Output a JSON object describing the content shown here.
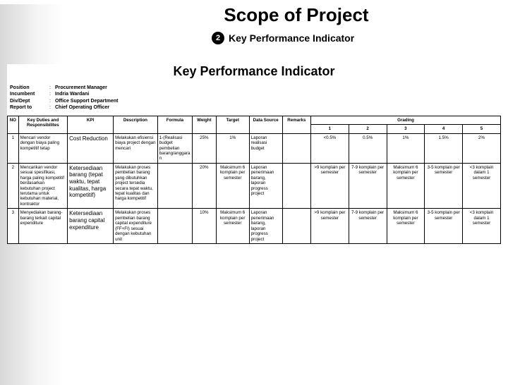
{
  "title": "Scope of Project",
  "subtitle_num": "2",
  "subtitle_text": "Key Performance Indicator",
  "kpi_heading": "Key Performance Indicator",
  "info": {
    "position_label": "Position",
    "position_val": "Procurement Manager",
    "incumbent_label": "Incumbent",
    "incumbent_val": "Indria Wardani",
    "div_label": "Div/Dept",
    "div_val": "Office Support Department",
    "report_label": "Report to",
    "report_val": "Chief Operating Officer"
  },
  "headers": {
    "no": "NO",
    "duties": "Key Duties and Responsibilites",
    "kpi": "KPI",
    "desc": "Description",
    "formula": "Formula",
    "weight": "Weight",
    "target": "Target",
    "data_source": "Data Source",
    "remarks": "Remarks",
    "grading": "Grading",
    "g1": "1",
    "g2": "2",
    "g3": "3",
    "g4": "4",
    "g5": "5"
  },
  "rows": [
    {
      "no": "1",
      "duties": "Mencari vendor dengan biaya paling kompetitif tetap",
      "kpi": "Cost Reduction",
      "desc": "Melakukan efisiensi biaya project dengan mencari",
      "formula": "1-(Realisasi budget pembelian barang/anggaran",
      "weight": "25%",
      "target": "1%",
      "ds": "Laporan realisasi budget",
      "remarks": "",
      "g1": "<0.5%",
      "g2": "0.5%",
      "g3": "1%",
      "g4": "1.5%",
      "g5": "2%"
    },
    {
      "no": "2",
      "duties": "Mencarikan vendor sesuai spesifikasi, harga paling kompetitif berdasarkan kebutuhan project terutama untuk kebutuhan material, kontraktor",
      "kpi": "Ketersediaan barang (tepat waktu, tepat kualitas, harga kompetitif)",
      "desc": "Melakukan proses pembelian barang yang dibutuhkan project tersedia secara tepat waktu, tepat kualitas dan harga kompetitif",
      "formula": "",
      "weight": "20%",
      "target": "Maksimum 6 komplain per semester",
      "ds": "Laporan penerimaan barang, laporan progress project",
      "remarks": "",
      "g1": ">9 komplain per semester",
      "g2": "7-9 komplain per semester",
      "g3": "Maksimum 6 komplain per semester",
      "g4": "3-5 komplain per semester",
      "g5": "<3 komplain dalam 1 semester"
    },
    {
      "no": "3",
      "duties": "Menyediakan barang-barang terkait capital expenditure",
      "kpi": "Ketersediaan barang capital expenditure",
      "desc": "Melakukan proses pembelian barang capital expenditure (FF+FI) sesuai dengan kebutuhan unit",
      "formula": "",
      "weight": "10%",
      "target": "Maksimum 6 komplain per semester",
      "ds": "Laporan penerimaan barang, laporan progress project",
      "remarks": "",
      "g1": ">9 komplain per semester",
      "g2": "7-9 komplain per semester",
      "g3": "Maksimum 6 komplain per semester",
      "g4": "3-5 komplain per semester",
      "g5": "<3 komplain dalam 1 semester"
    }
  ]
}
